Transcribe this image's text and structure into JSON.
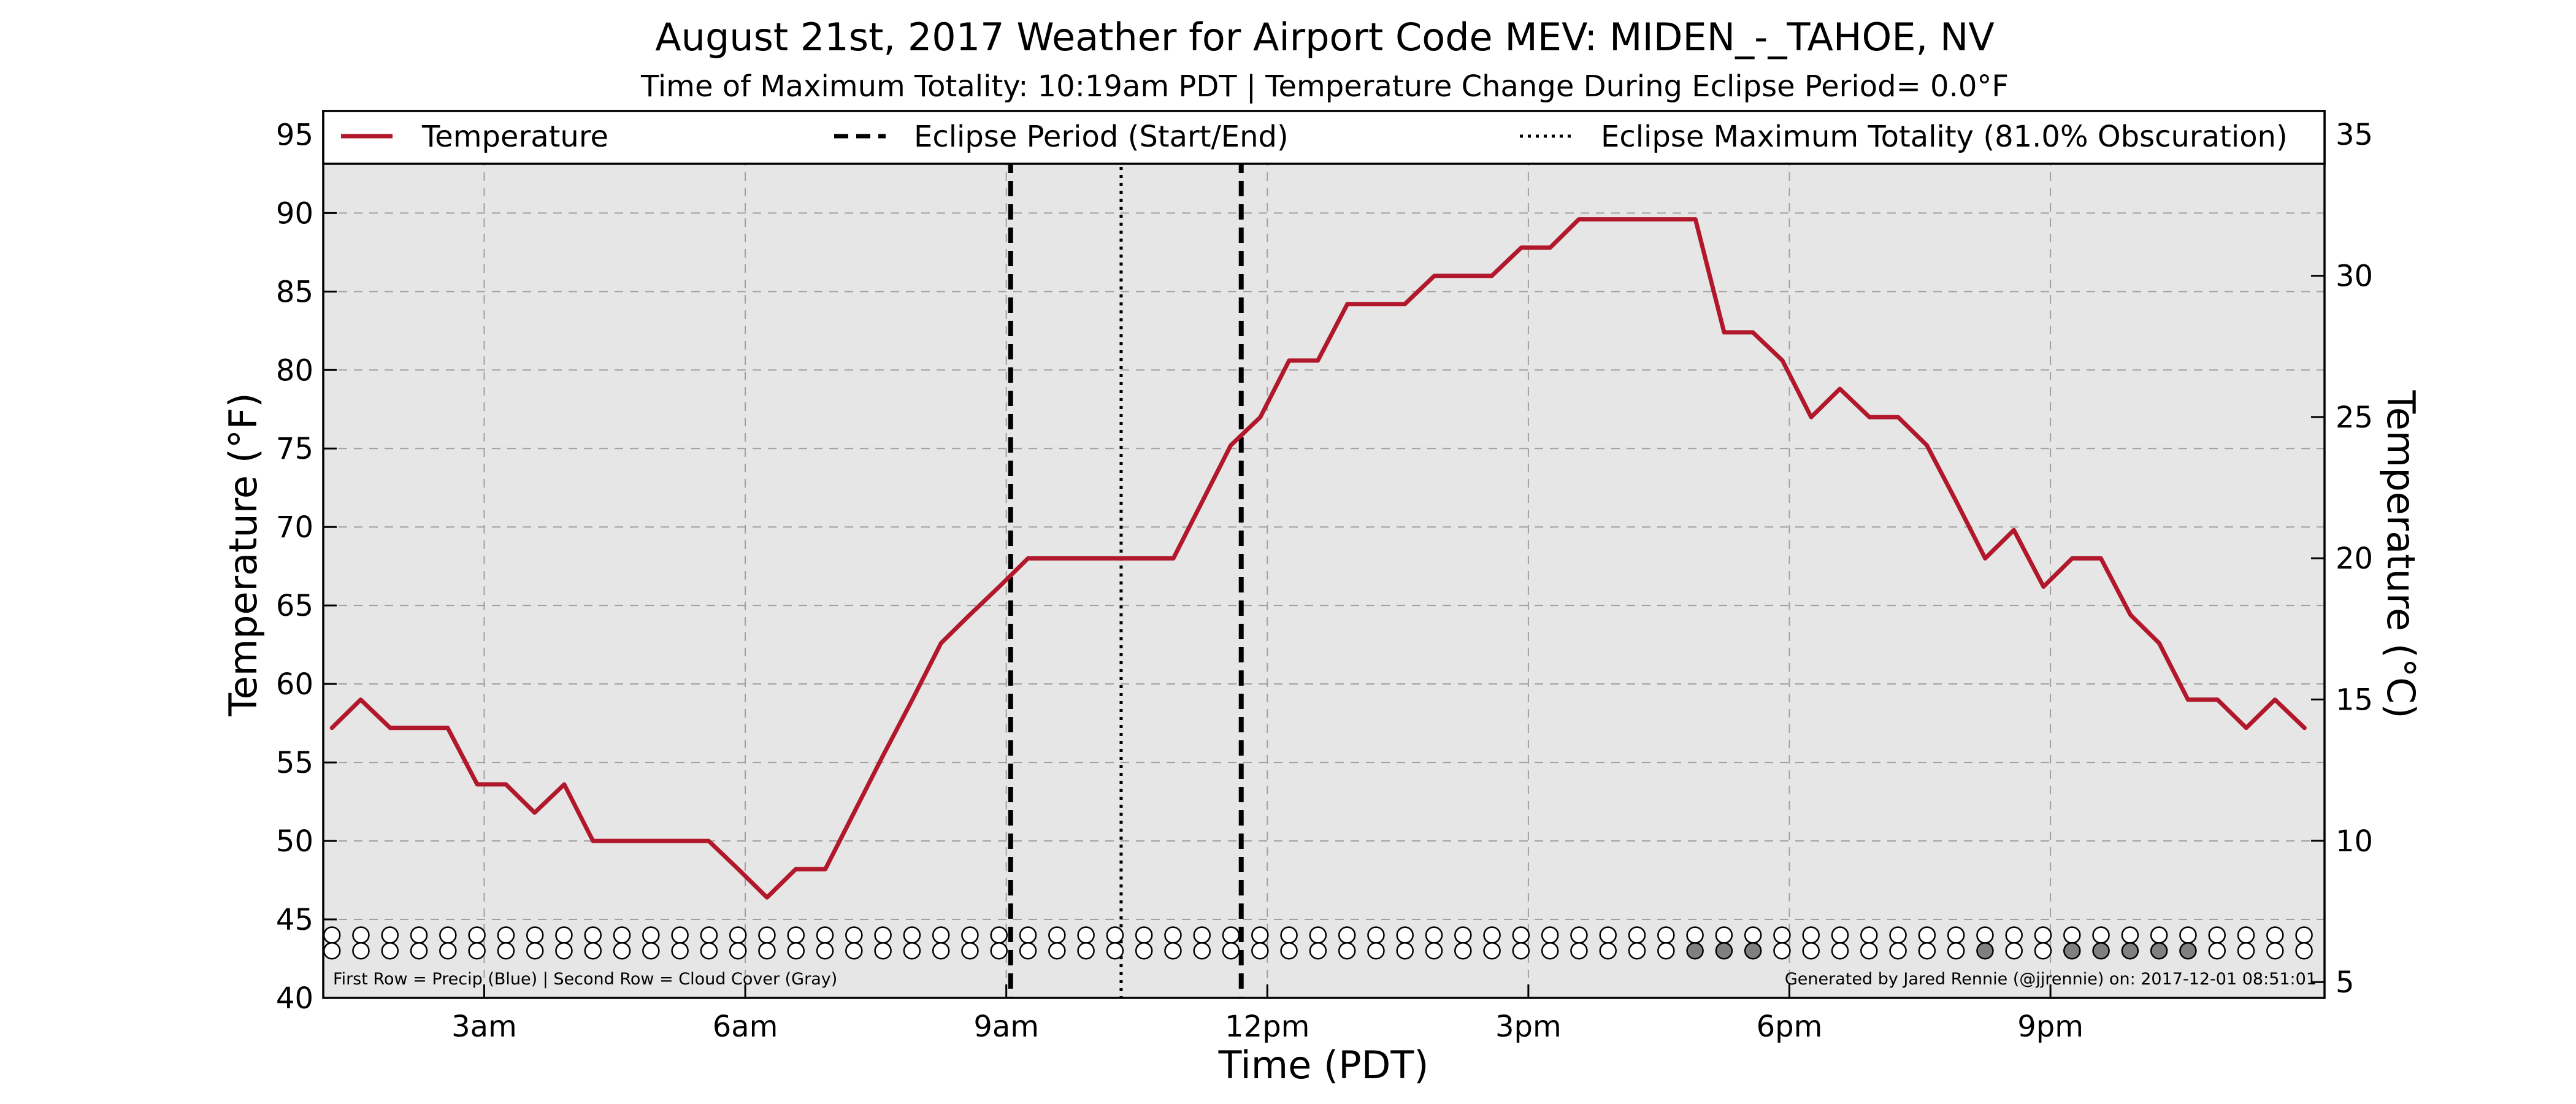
{
  "chart_data": {
    "type": "line",
    "title": "August 21st, 2017 Weather for Airport Code MEV: MIDEN_-_TAHOE, NV",
    "subtitle": "Time of Maximum Totality: 10:19am PDT | Temperature Change During Eclipse Period= 0.0°F",
    "xlabel": "Time (PDT)",
    "ylabel": "Temperature (°F)",
    "ylabel_right": "Temperature (°C)",
    "xlim": [
      1.15,
      24.15
    ],
    "ylim": [
      40,
      96.5
    ],
    "ylim_right": [
      4.44,
      35.83
    ],
    "x_ticks": [
      {
        "value": 3,
        "label": "3am"
      },
      {
        "value": 6,
        "label": "6am"
      },
      {
        "value": 9,
        "label": "9am"
      },
      {
        "value": 12,
        "label": "12pm"
      },
      {
        "value": 15,
        "label": "3pm"
      },
      {
        "value": 18,
        "label": "6pm"
      },
      {
        "value": 21,
        "label": "9pm"
      }
    ],
    "y_ticks": [
      40,
      45,
      50,
      55,
      60,
      65,
      70,
      75,
      80,
      85,
      90,
      95
    ],
    "y_ticks_right": [
      5,
      10,
      15,
      20,
      25,
      30,
      35
    ],
    "grid": true,
    "legend_position": "top",
    "legend": [
      {
        "label": "Temperature",
        "style": "solid",
        "color": "#b2182b"
      },
      {
        "label": "Eclipse Period (Start/End)",
        "style": "dashed",
        "color": "#000000"
      },
      {
        "label": "Eclipse Maximum Totality (81.0% Obscuration)",
        "style": "dotted",
        "color": "#000000"
      }
    ],
    "series": [
      {
        "name": "Temperature",
        "color": "#b2182b",
        "x": [
          1.25,
          1.58,
          1.92,
          2.25,
          2.58,
          2.92,
          3.25,
          3.58,
          3.92,
          4.25,
          4.58,
          4.92,
          5.25,
          5.58,
          5.92,
          6.25,
          6.58,
          6.92,
          7.25,
          7.58,
          7.92,
          8.25,
          8.58,
          8.92,
          9.25,
          9.58,
          9.92,
          10.25,
          10.58,
          10.92,
          11.25,
          11.58,
          11.92,
          12.25,
          12.58,
          12.92,
          13.25,
          13.58,
          13.92,
          14.25,
          14.58,
          14.92,
          15.25,
          15.58,
          15.92,
          16.25,
          16.58,
          16.92,
          17.25,
          17.58,
          17.92,
          18.25,
          18.58,
          18.92,
          19.25,
          19.58,
          19.92,
          20.25,
          20.58,
          20.92,
          21.25,
          21.58,
          21.92,
          22.25,
          22.58,
          22.92,
          23.25,
          23.58,
          23.92
        ],
        "values": [
          57.2,
          59.0,
          57.2,
          57.2,
          57.2,
          53.6,
          53.6,
          51.8,
          53.6,
          50.0,
          50.0,
          50.0,
          50.0,
          50.0,
          48.2,
          46.4,
          48.2,
          48.2,
          51.8,
          55.4,
          59.0,
          62.6,
          64.4,
          66.2,
          68.0,
          68.0,
          68.0,
          68.0,
          68.0,
          68.0,
          71.6,
          75.2,
          77.0,
          80.6,
          80.6,
          84.2,
          84.2,
          84.2,
          86.0,
          86.0,
          86.0,
          87.8,
          87.8,
          89.6,
          89.6,
          89.6,
          89.6,
          89.6,
          82.4,
          82.4,
          80.6,
          77.0,
          78.8,
          77.0,
          77.0,
          75.2,
          71.6,
          68.0,
          69.8,
          66.2,
          68.0,
          68.0,
          64.4,
          62.6,
          59.0,
          59.0,
          57.2,
          59.0,
          57.2
        ]
      }
    ],
    "eclipse_start": 9.05,
    "eclipse_end": 11.7,
    "eclipse_max": 10.32,
    "dot_rows": {
      "x_start": 1.25,
      "x_step": 0.3333,
      "count": 69,
      "precip_y": 44.0,
      "cloud_y": 43.0,
      "cloud_gray_indices": [
        47,
        48,
        49,
        57,
        60,
        61,
        62,
        63,
        64
      ],
      "cloud_gray_color": "#808080",
      "empty_color": "#ffffff"
    },
    "note_left": "First Row = Precip (Blue) | Second Row = Cloud Cover (Gray)",
    "note_right": "Generated by Jared Rennie (@jjrennie) on: 2017-12-01 08:51:01"
  }
}
